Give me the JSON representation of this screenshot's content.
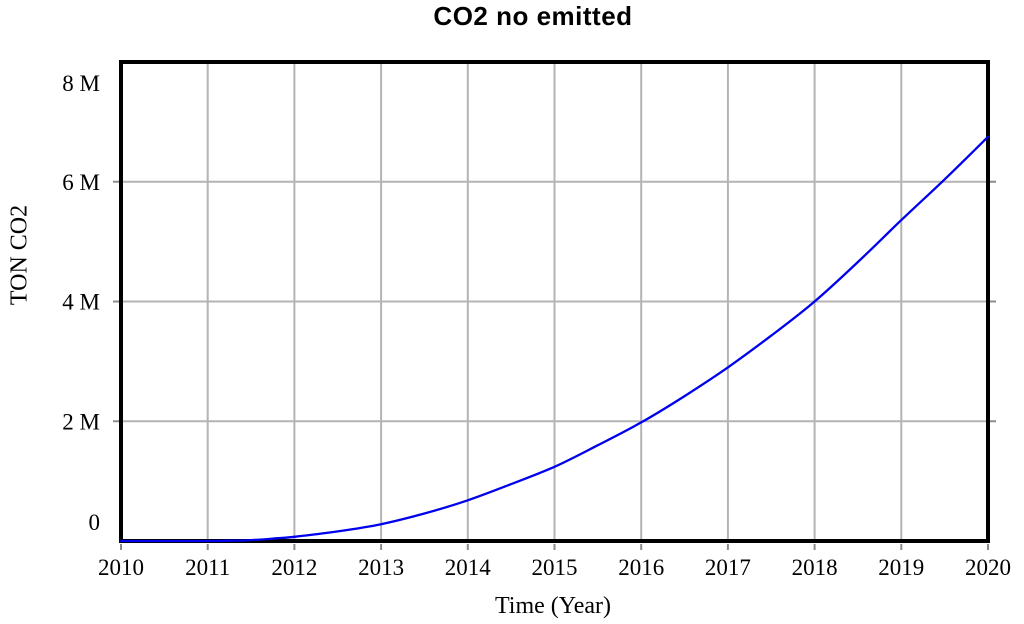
{
  "chart_data": {
    "type": "line",
    "title": "CO2 no emitted",
    "xlabel": "Time (Year)",
    "ylabel": "TON CO2",
    "xlim": [
      2010,
      2020
    ],
    "ylim": [
      0,
      8
    ],
    "y_unit": "M",
    "grid": true,
    "legend_position": "none",
    "colors": {
      "line": "#0000ee",
      "grid": "#b4b4b4",
      "frame": "#000000",
      "tick": "#8c8c8c",
      "background": "#ffffff",
      "text": "#000000"
    },
    "x_ticks": [
      {
        "value": 2010,
        "label": "2010"
      },
      {
        "value": 2011,
        "label": "2011"
      },
      {
        "value": 2012,
        "label": "2012"
      },
      {
        "value": 2013,
        "label": "2013"
      },
      {
        "value": 2014,
        "label": "2014"
      },
      {
        "value": 2015,
        "label": "2015"
      },
      {
        "value": 2016,
        "label": "2016"
      },
      {
        "value": 2017,
        "label": "2017"
      },
      {
        "value": 2018,
        "label": "2018"
      },
      {
        "value": 2019,
        "label": "2019"
      },
      {
        "value": 2020,
        "label": "2020"
      }
    ],
    "y_ticks": [
      {
        "value": 0,
        "label": "0"
      },
      {
        "value": 2,
        "label": "2 M"
      },
      {
        "value": 4,
        "label": "4 M"
      },
      {
        "value": 6,
        "label": "6 M"
      },
      {
        "value": 8,
        "label": "8 M"
      }
    ],
    "series": [
      {
        "name": "CO2 no emitted",
        "color": "#0000ee",
        "x": [
          2010,
          2010.5,
          2011,
          2011.25,
          2011.5,
          2011.75,
          2012,
          2012.5,
          2013,
          2013.5,
          2014,
          2014.5,
          2015,
          2015.5,
          2016,
          2016.5,
          2017,
          2017.5,
          2018,
          2018.5,
          2019,
          2019.5,
          2020
        ],
        "y": [
          0,
          0,
          0,
          0.005,
          0.015,
          0.04,
          0.07,
          0.16,
          0.28,
          0.46,
          0.68,
          0.95,
          1.24,
          1.6,
          1.98,
          2.42,
          2.9,
          3.43,
          4.0,
          4.66,
          5.36,
          6.04,
          6.75
        ]
      }
    ],
    "yearly_readings": {
      "2010": 0,
      "2011": 0,
      "2012": 0.07,
      "2013": 0.28,
      "2014": 0.68,
      "2015": 1.24,
      "2016": 1.98,
      "2017": 2.9,
      "2018": 4.0,
      "2019": 5.36,
      "2020": 6.75
    }
  }
}
